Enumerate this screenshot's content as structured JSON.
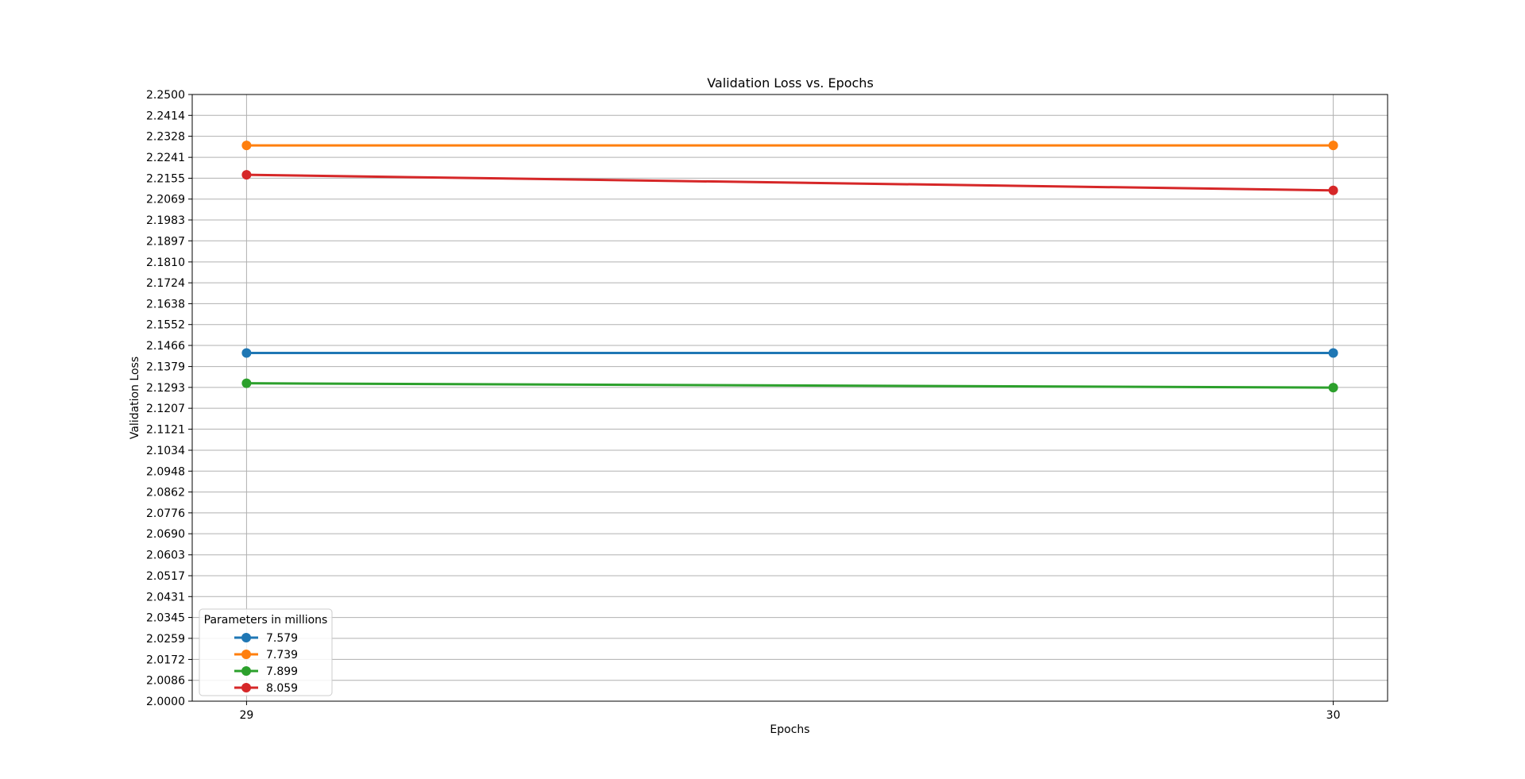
{
  "chart_data": {
    "type": "line",
    "title": "Validation Loss vs. Epochs",
    "xlabel": "Epochs",
    "ylabel": "Validation Loss",
    "x": [
      29,
      30
    ],
    "xlim": [
      28.95,
      30.05
    ],
    "ylim": [
      2.0,
      2.25
    ],
    "yticks": [
      "2.0000",
      "2.0086",
      "2.0172",
      "2.0259",
      "2.0345",
      "2.0431",
      "2.0517",
      "2.0603",
      "2.0690",
      "2.0776",
      "2.0862",
      "2.0948",
      "2.1034",
      "2.1121",
      "2.1207",
      "2.1293",
      "2.1379",
      "2.1466",
      "2.1552",
      "2.1638",
      "2.1724",
      "2.1810",
      "2.1897",
      "2.1983",
      "2.2069",
      "2.2155",
      "2.2241",
      "2.2328",
      "2.2414",
      "2.2500"
    ],
    "xticks": [
      "29",
      "30"
    ],
    "grid": true,
    "legend": {
      "title": "Parameters in millions",
      "placement": "lower-left"
    },
    "series": [
      {
        "name": "7.579",
        "color": "#1f77b4",
        "values": [
          2.1435,
          2.1435
        ]
      },
      {
        "name": "7.739",
        "color": "#ff7f0e",
        "values": [
          2.229,
          2.229
        ]
      },
      {
        "name": "7.899",
        "color": "#2ca02c",
        "values": [
          2.131,
          2.1292
        ]
      },
      {
        "name": "8.059",
        "color": "#d62728",
        "values": [
          2.2169,
          2.2105
        ]
      }
    ]
  }
}
